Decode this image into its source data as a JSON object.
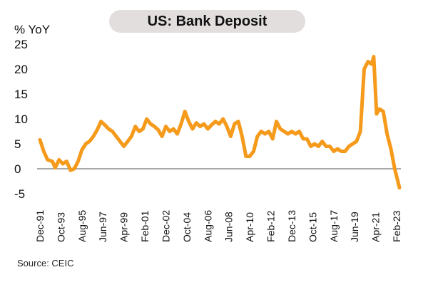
{
  "source_label": "Source: CEIC",
  "chart_data": {
    "type": "line",
    "title": "US: Bank Deposit",
    "ylabel": "% YoY",
    "xlabel": "",
    "ylim": [
      -5,
      25
    ],
    "yticks": [
      25,
      20,
      15,
      10,
      5,
      0,
      -5
    ],
    "x_tick_labels": [
      "Dec-91",
      "Oct-93",
      "Aug-95",
      "Jun-97",
      "Apr-99",
      "Feb-01",
      "Dec-02",
      "Oct-04",
      "Aug-06",
      "Jun-08",
      "Apr-10",
      "Feb-12",
      "Dec-13",
      "Oct-15",
      "Aug-17",
      "Jun-19",
      "Apr-21",
      "Feb-23"
    ],
    "grid": false,
    "zero_line": true,
    "line_color": "#f59a1b",
    "series": [
      {
        "points": [
          [
            "1991-12",
            5.8
          ],
          [
            "1992-04",
            3.5
          ],
          [
            "1992-08",
            1.8
          ],
          [
            "1993-01",
            1.5
          ],
          [
            "1993-04",
            0.2
          ],
          [
            "1993-08",
            1.8
          ],
          [
            "1993-12",
            1.0
          ],
          [
            "1994-04",
            1.5
          ],
          [
            "1994-08",
            -0.3
          ],
          [
            "1994-12",
            0.0
          ],
          [
            "1995-04",
            1.5
          ],
          [
            "1995-08",
            3.8
          ],
          [
            "1995-12",
            5.0
          ],
          [
            "1996-04",
            5.5
          ],
          [
            "1996-08",
            6.5
          ],
          [
            "1996-12",
            7.8
          ],
          [
            "1997-04",
            9.5
          ],
          [
            "1997-08",
            8.8
          ],
          [
            "1997-12",
            8.0
          ],
          [
            "1998-04",
            7.5
          ],
          [
            "1998-08",
            6.5
          ],
          [
            "1998-12",
            5.5
          ],
          [
            "1999-04",
            4.5
          ],
          [
            "1999-08",
            5.5
          ],
          [
            "1999-12",
            6.5
          ],
          [
            "2000-04",
            8.5
          ],
          [
            "2000-08",
            7.5
          ],
          [
            "2000-12",
            8.0
          ],
          [
            "2001-04",
            10.0
          ],
          [
            "2001-08",
            9.0
          ],
          [
            "2001-12",
            8.5
          ],
          [
            "2002-04",
            7.8
          ],
          [
            "2002-08",
            6.5
          ],
          [
            "2002-12",
            8.5
          ],
          [
            "2003-04",
            7.5
          ],
          [
            "2003-08",
            8.0
          ],
          [
            "2003-12",
            7.0
          ],
          [
            "2004-04",
            9.0
          ],
          [
            "2004-08",
            11.5
          ],
          [
            "2004-12",
            9.5
          ],
          [
            "2005-04",
            8.0
          ],
          [
            "2005-08",
            9.2
          ],
          [
            "2005-12",
            8.5
          ],
          [
            "2006-04",
            9.0
          ],
          [
            "2006-08",
            8.0
          ],
          [
            "2006-12",
            8.8
          ],
          [
            "2007-04",
            9.5
          ],
          [
            "2007-08",
            9.0
          ],
          [
            "2007-12",
            10.0
          ],
          [
            "2008-04",
            8.5
          ],
          [
            "2008-08",
            6.5
          ],
          [
            "2008-12",
            9.0
          ],
          [
            "2009-04",
            9.5
          ],
          [
            "2009-08",
            6.5
          ],
          [
            "2009-12",
            2.5
          ],
          [
            "2010-04",
            2.5
          ],
          [
            "2010-08",
            3.5
          ],
          [
            "2010-12",
            6.5
          ],
          [
            "2011-04",
            7.5
          ],
          [
            "2011-08",
            7.0
          ],
          [
            "2011-12",
            7.5
          ],
          [
            "2012-04",
            6.0
          ],
          [
            "2012-08",
            9.5
          ],
          [
            "2012-12",
            8.0
          ],
          [
            "2013-04",
            7.5
          ],
          [
            "2013-08",
            7.0
          ],
          [
            "2013-12",
            7.5
          ],
          [
            "2014-04",
            7.0
          ],
          [
            "2014-08",
            7.5
          ],
          [
            "2014-12",
            6.0
          ],
          [
            "2015-04",
            6.0
          ],
          [
            "2015-08",
            4.5
          ],
          [
            "2015-12",
            5.0
          ],
          [
            "2016-04",
            4.5
          ],
          [
            "2016-08",
            5.5
          ],
          [
            "2016-12",
            4.5
          ],
          [
            "2017-04",
            4.5
          ],
          [
            "2017-08",
            3.5
          ],
          [
            "2017-12",
            4.0
          ],
          [
            "2018-04",
            3.5
          ],
          [
            "2018-08",
            3.5
          ],
          [
            "2018-12",
            4.5
          ],
          [
            "2019-04",
            5.0
          ],
          [
            "2019-08",
            5.5
          ],
          [
            "2019-12",
            7.5
          ],
          [
            "2020-04",
            20.0
          ],
          [
            "2020-08",
            21.5
          ],
          [
            "2020-12",
            21.0
          ],
          [
            "2021-02",
            22.5
          ],
          [
            "2021-05",
            11.0
          ],
          [
            "2021-08",
            12.0
          ],
          [
            "2021-12",
            11.5
          ],
          [
            "2022-04",
            7.0
          ],
          [
            "2022-08",
            4.0
          ],
          [
            "2022-12",
            0.0
          ],
          [
            "2023-02",
            -1.5
          ],
          [
            "2023-05",
            -3.8
          ]
        ]
      }
    ]
  }
}
